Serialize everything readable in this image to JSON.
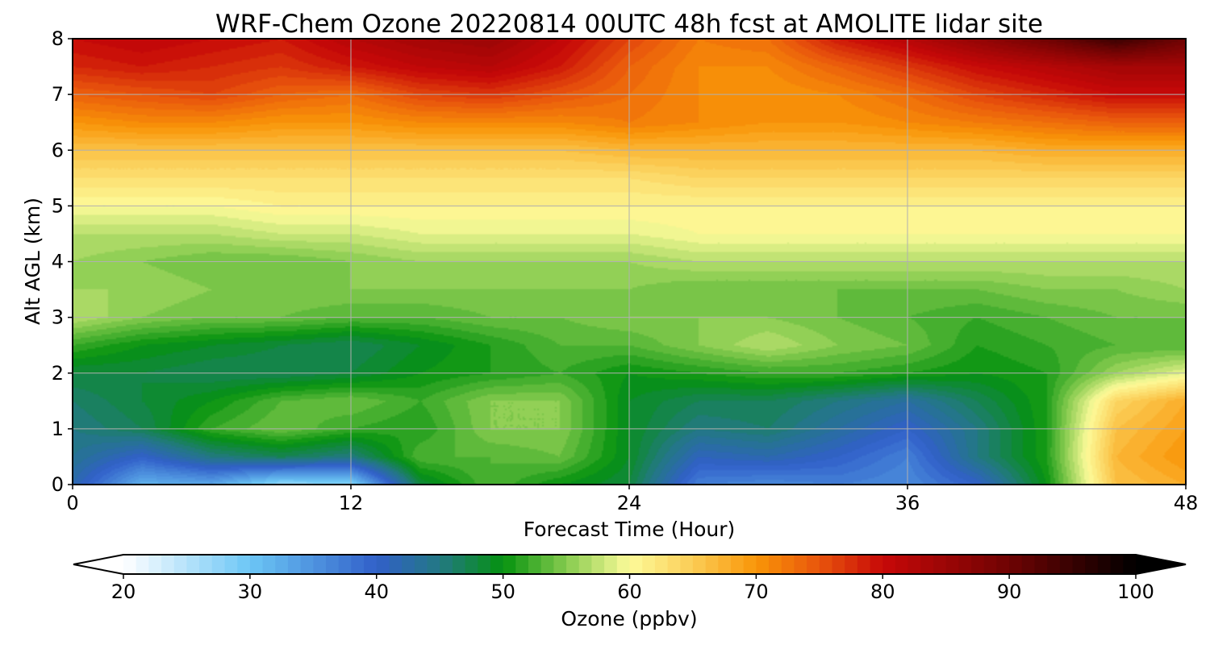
{
  "chart_data": {
    "type": "heatmap",
    "title": "WRF-Chem Ozone  20220814 00UTC 48h fcst at AMOLITE lidar site",
    "xlabel": "Forecast Time (Hour)",
    "ylabel": "Alt AGL (km)",
    "xlim": [
      0,
      48
    ],
    "ylim": [
      0,
      8
    ],
    "xticks": [
      0,
      12,
      24,
      36,
      48
    ],
    "yticks": [
      0,
      1,
      2,
      3,
      4,
      5,
      6,
      7,
      8
    ],
    "grid": true,
    "colorbar": {
      "label": "Ozone  (ppbv)",
      "min": 20,
      "max": 100,
      "ticks": [
        20,
        30,
        40,
        50,
        60,
        70,
        80,
        90,
        100
      ],
      "extend": "both",
      "colors": [
        [
          20,
          "#ffffff"
        ],
        [
          30,
          "#6cc6f5"
        ],
        [
          40,
          "#3160c9"
        ],
        [
          45,
          "#237883"
        ],
        [
          50,
          "#05920f"
        ],
        [
          55,
          "#86cb4e"
        ],
        [
          60,
          "#fdfb9a"
        ],
        [
          65,
          "#fbcc55"
        ],
        [
          70,
          "#f99508"
        ],
        [
          75,
          "#e8550c"
        ],
        [
          80,
          "#c70808"
        ],
        [
          90,
          "#6f0303"
        ],
        [
          100,
          "#000000"
        ]
      ]
    },
    "x": [
      0,
      3,
      6,
      9,
      12,
      15,
      18,
      21,
      24,
      27,
      30,
      33,
      36,
      39,
      42,
      45,
      48
    ],
    "y": [
      0,
      0.5,
      1,
      1.5,
      2,
      2.5,
      3,
      3.5,
      4,
      4.5,
      5,
      5.5,
      6,
      6.5,
      7,
      7.5,
      8
    ],
    "values": [
      [
        42,
        32,
        33,
        27,
        28,
        48,
        53,
        50,
        48,
        37,
        36,
        37,
        36,
        40,
        50,
        66,
        68
      ],
      [
        44,
        40,
        45,
        47,
        45,
        53,
        53,
        54,
        49,
        41,
        42,
        40,
        37,
        45,
        51,
        67,
        70
      ],
      [
        45,
        47,
        52,
        54,
        52,
        51,
        55,
        55,
        49,
        45,
        46,
        43,
        40,
        45,
        51,
        66,
        69
      ],
      [
        46,
        48,
        50,
        53,
        54,
        52,
        55,
        55,
        49,
        47,
        47,
        45,
        43,
        47,
        51,
        64,
        68
      ],
      [
        48,
        48,
        47,
        47,
        48,
        50,
        51,
        52,
        50,
        51,
        52,
        52,
        51,
        50,
        51,
        56,
        59
      ],
      [
        52,
        50,
        49,
        48,
        47,
        49,
        51,
        53,
        53,
        55,
        57,
        55,
        54,
        51,
        52,
        53,
        53
      ],
      [
        57,
        55,
        54,
        54,
        53,
        53,
        54,
        54,
        55,
        55,
        55,
        54,
        53,
        52,
        53,
        54,
        54
      ],
      [
        56,
        56,
        55,
        55,
        55,
        55,
        55,
        55,
        55,
        54,
        54,
        54,
        54,
        54,
        55,
        55,
        56
      ],
      [
        56,
        55,
        54,
        54,
        55,
        56,
        56,
        56,
        56,
        57,
        57,
        57,
        57,
        57,
        57,
        57,
        57
      ],
      [
        57,
        57,
        57,
        58,
        58,
        59,
        59,
        59,
        59,
        60,
        60,
        60,
        60,
        60,
        60,
        60,
        60
      ],
      [
        60,
        60,
        60,
        61,
        61,
        61,
        61,
        61,
        61,
        61,
        61,
        61,
        61,
        61,
        61,
        61,
        61
      ],
      [
        63,
        63,
        63,
        63,
        63,
        63,
        63,
        63,
        63,
        64,
        64,
        64,
        64,
        64,
        64,
        64,
        64
      ],
      [
        66,
        66,
        66,
        66,
        66,
        66,
        66,
        66,
        67,
        67,
        67,
        67,
        67,
        67,
        68,
        68,
        68
      ],
      [
        70,
        71,
        71,
        70,
        70,
        71,
        71,
        71,
        72,
        71,
        70,
        70,
        71,
        72,
        73,
        74,
        74
      ],
      [
        74,
        75,
        76,
        74,
        73,
        76,
        77,
        75,
        73,
        71,
        70,
        71,
        73,
        76,
        78,
        80,
        80
      ],
      [
        78,
        79,
        78,
        77,
        79,
        81,
        82,
        79,
        74,
        71,
        71,
        74,
        77,
        80,
        82,
        84,
        84
      ],
      [
        80,
        81,
        80,
        79,
        82,
        84,
        85,
        81,
        76,
        72,
        73,
        79,
        82,
        86,
        90,
        95,
        90
      ]
    ]
  }
}
